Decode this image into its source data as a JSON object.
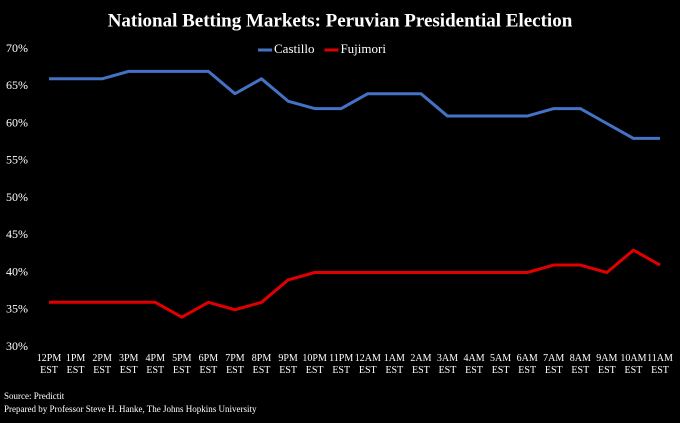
{
  "chart_data": {
    "type": "line",
    "title": "National Betting Markets: Peruvian Presidential Election",
    "categories": [
      "12PM EST",
      "1PM EST",
      "2PM EST",
      "3PM EST",
      "4PM EST",
      "5PM EST",
      "6PM EST",
      "7PM EST",
      "8PM EST",
      "9PM EST",
      "10PM EST",
      "11PM EST",
      "12AM EST",
      "1AM EST",
      "2AM EST",
      "3AM EST",
      "4AM EST",
      "5AM EST",
      "6AM EST",
      "7AM EST",
      "8AM EST",
      "9AM EST",
      "10AM EST",
      "11AM EST"
    ],
    "series": [
      {
        "name": "Castillo",
        "color": "#4472c4",
        "values": [
          66,
          66,
          66,
          67,
          67,
          67,
          67,
          64,
          66,
          63,
          62,
          62,
          64,
          64,
          64,
          61,
          61,
          61,
          61,
          62,
          62,
          60,
          58,
          58
        ]
      },
      {
        "name": "Fujimori",
        "color": "#e00000",
        "values": [
          36,
          36,
          36,
          36,
          36,
          34,
          36,
          35,
          36,
          39,
          40,
          40,
          40,
          40,
          40,
          40,
          40,
          40,
          40,
          41,
          41,
          40,
          43,
          41
        ]
      }
    ],
    "ylim": [
      30,
      70
    ],
    "yticks": [
      {
        "value": 30,
        "label": "30%"
      },
      {
        "value": 35,
        "label": "35%"
      },
      {
        "value": 40,
        "label": "40%"
      },
      {
        "value": 45,
        "label": "45%"
      },
      {
        "value": 50,
        "label": "50%"
      },
      {
        "value": 55,
        "label": "55%"
      },
      {
        "value": 60,
        "label": "60%"
      },
      {
        "value": 65,
        "label": "65%"
      },
      {
        "value": 70,
        "label": "70%"
      }
    ],
    "grid": false,
    "legend": "top",
    "annotations": [
      "Source: Predictit",
      "Prepared by Professor Steve H. Hanke, The Johns Hopkins University"
    ]
  }
}
